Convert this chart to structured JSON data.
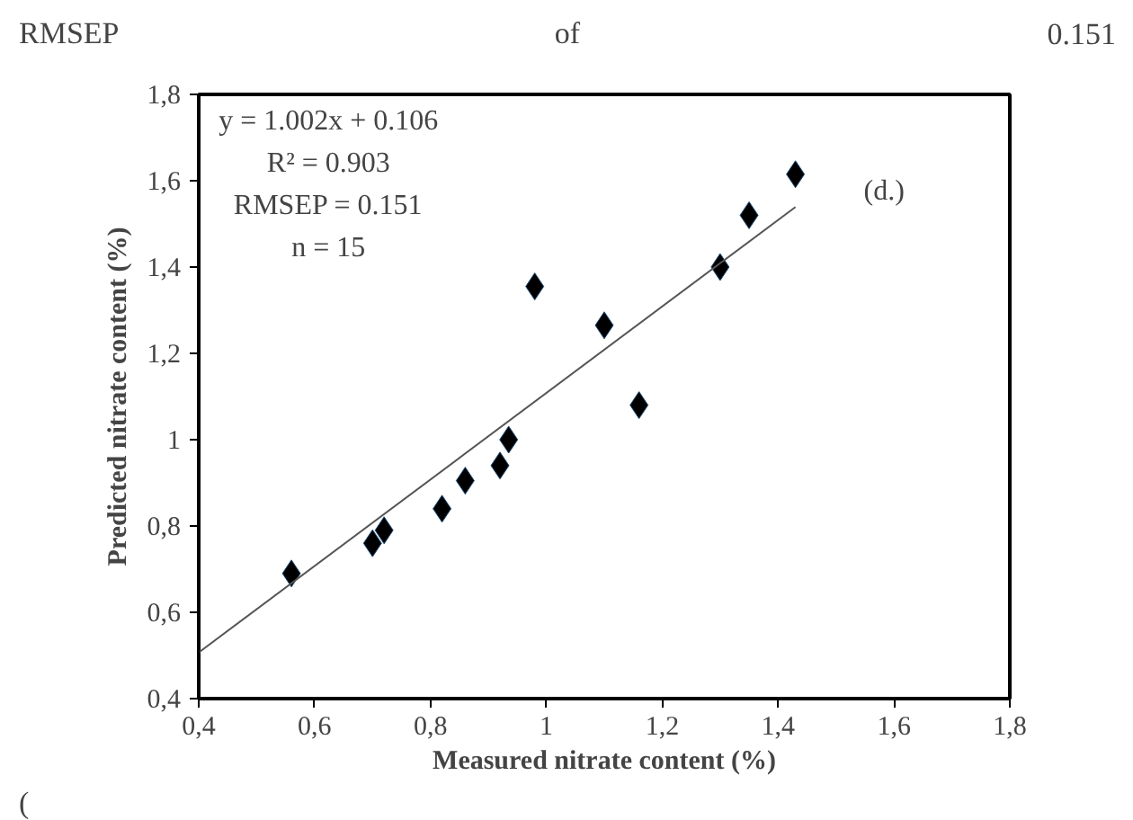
{
  "chart_data": {
    "type": "scatter",
    "xlabel": "Measured nitrate content (%)",
    "ylabel": "Predicted nitrate content (%)",
    "annotations": [
      "RMSEP",
      "of",
      "0.151",
      "(",
      "y = 1.002x + 0.106",
      "R² = 0.903",
      "RMSEP = 0.151",
      "n = 15",
      "(d.)"
    ],
    "series": [
      {
        "color": "#000000",
        "marker": "diamond",
        "x": [
          0.56,
          0.7,
          0.72,
          0.82,
          0.86,
          0.92,
          0.935,
          0.98,
          1.1,
          1.16,
          1.3,
          1.35,
          1.43
        ],
        "values": [
          0.69,
          0.76,
          0.79,
          0.84,
          0.905,
          0.94,
          1.0,
          1.355,
          1.265,
          1.08,
          1.4,
          1.52,
          1.615
        ]
      },
      {
        "type": "line",
        "color": "#555555",
        "line_style": "solid",
        "x": [
          0.4,
          1.43
        ],
        "values": [
          0.507,
          1.539
        ]
      }
    ],
    "xlim": [
      0.4,
      1.8
    ],
    "ylim": [
      0.4,
      1.8
    ],
    "xticks": [
      {
        "value": 0.4,
        "label": "0,4"
      },
      {
        "value": 0.6,
        "label": "0,6"
      },
      {
        "value": 0.8,
        "label": "0,8"
      },
      1,
      {
        "value": 1.2,
        "label": "1,2"
      },
      {
        "value": 1.4,
        "label": "1,4"
      },
      {
        "value": 1.6,
        "label": "1,6"
      },
      {
        "value": 1.8,
        "label": "1,8"
      }
    ],
    "yticks": [
      {
        "value": 0.4,
        "label": "0,4"
      },
      {
        "value": 0.6,
        "label": "0,6"
      },
      {
        "value": 0.8,
        "label": "0,8"
      },
      1,
      {
        "value": 1.2,
        "label": "1,2"
      },
      {
        "value": 1.4,
        "label": "1,4"
      },
      {
        "value": 1.6,
        "label": "1,6"
      },
      {
        "value": 1.8,
        "label": "1,8"
      }
    ],
    "grid": false
  }
}
